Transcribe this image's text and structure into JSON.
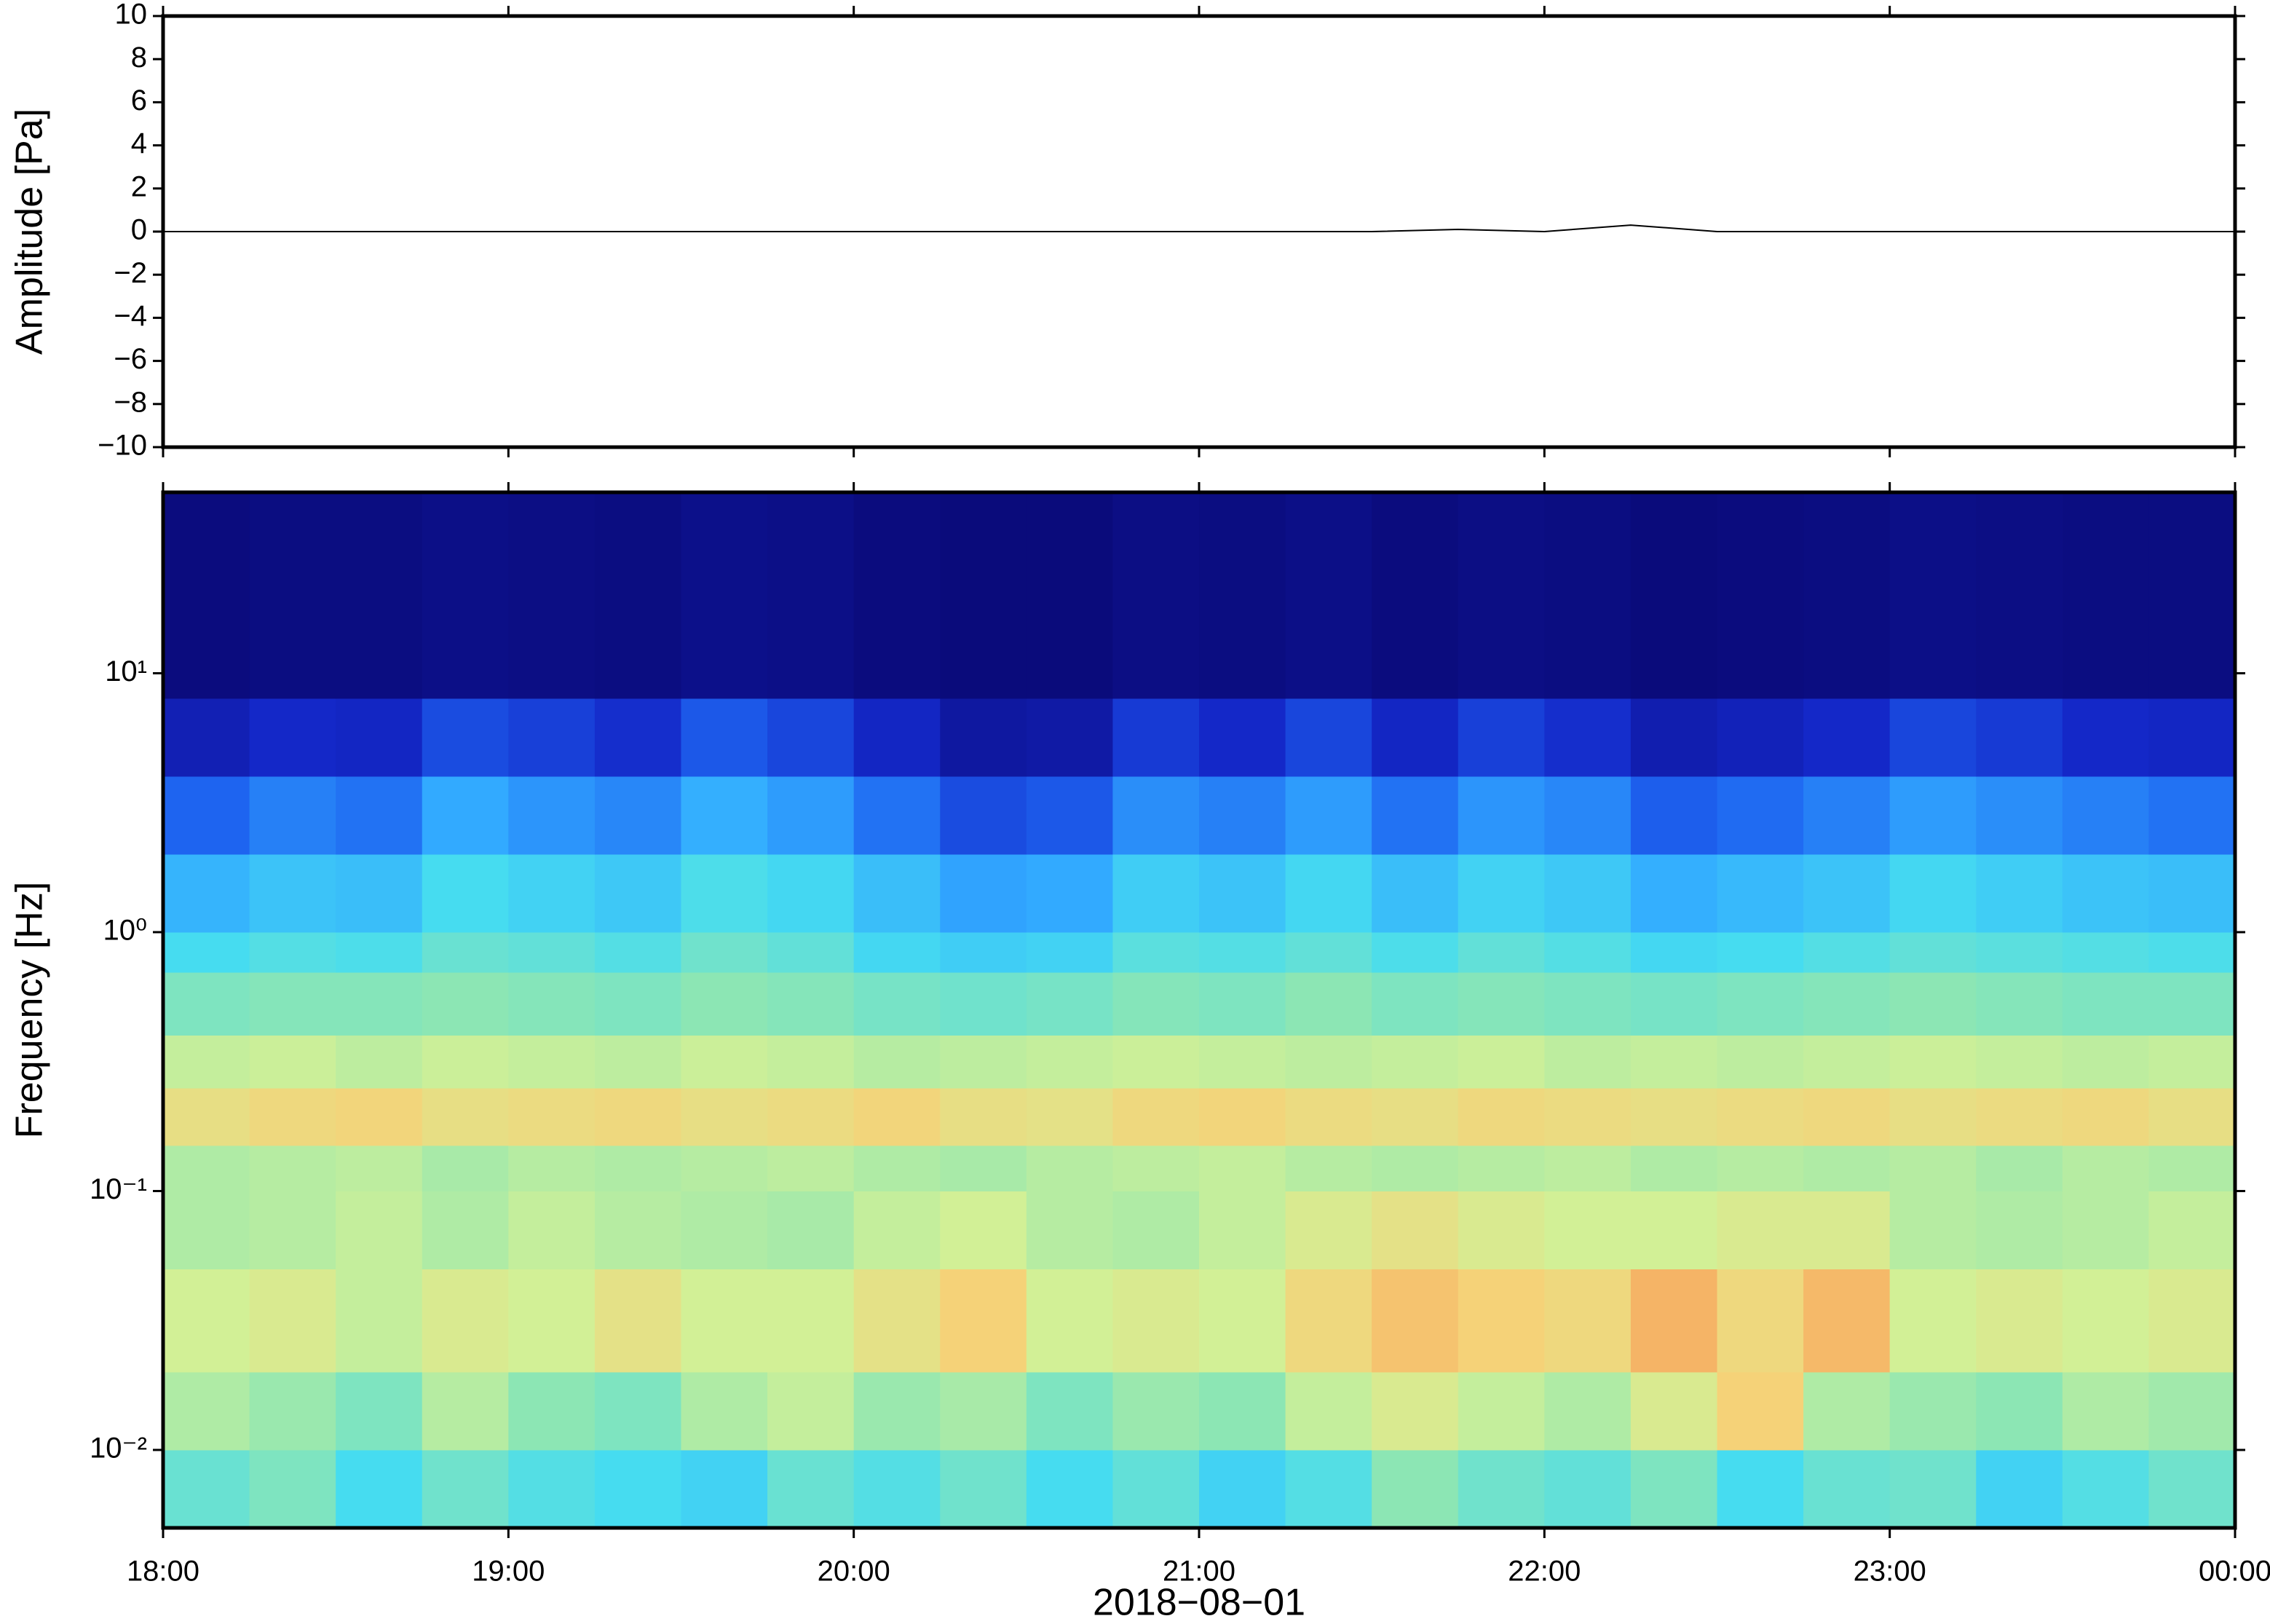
{
  "chart_data": [
    {
      "type": "line",
      "ylabel": "Amplitude [Pa]",
      "xlim": [
        18,
        24
      ],
      "ylim": [
        -10,
        10
      ],
      "yticks": [
        {
          "value": -10,
          "label": "−10"
        },
        {
          "value": -8,
          "label": "−8"
        },
        {
          "value": -6,
          "label": "−6"
        },
        {
          "value": -4,
          "label": "−4"
        },
        {
          "value": -2,
          "label": "−2"
        },
        0,
        2,
        4,
        6,
        8,
        10
      ],
      "color": "#000000",
      "x": [
        18,
        18.25,
        18.5,
        18.75,
        19,
        19.25,
        19.5,
        19.75,
        20,
        20.25,
        20.5,
        20.75,
        21,
        21.25,
        21.5,
        21.75,
        22,
        22.25,
        22.5,
        22.75,
        23,
        23.25,
        23.5,
        23.75,
        24
      ],
      "values": [
        0,
        0,
        0,
        0,
        0,
        0,
        0,
        0,
        0,
        0,
        0,
        0,
        0,
        0,
        0,
        0.1,
        0,
        0.3,
        0,
        0,
        0,
        0,
        0,
        0,
        0
      ]
    },
    {
      "type": "heatmap",
      "ylabel": "Frequency [Hz]",
      "xlabel": "2018−08−01",
      "xlim": [
        18,
        24
      ],
      "ylim": [
        0.005,
        50
      ],
      "log_y": true,
      "xticks": [
        {
          "value": 18,
          "label": "18:00"
        },
        {
          "value": 19,
          "label": "19:00"
        },
        {
          "value": 20,
          "label": "20:00"
        },
        {
          "value": 21,
          "label": "21:00"
        },
        {
          "value": 22,
          "label": "22:00"
        },
        {
          "value": 23,
          "label": "23:00"
        },
        {
          "value": 24,
          "label": "00:00"
        }
      ],
      "yticks": [
        {
          "value": 0.01,
          "label": "10⁻²"
        },
        {
          "value": 0.1,
          "label": "10⁻¹"
        },
        {
          "value": 1,
          "label": "10⁰"
        },
        {
          "value": 10,
          "label": "10¹"
        }
      ],
      "colormap": [
        "#0a0a78",
        "#0e1496",
        "#1428c8",
        "#1e64f0",
        "#32aaff",
        "#46dcf0",
        "#8ce6b4",
        "#d2f096",
        "#f5d278",
        "#f5a05a",
        "#e64628"
      ],
      "zlim": [
        0,
        10
      ],
      "x_bins": [
        18,
        18.25,
        18.5,
        18.75,
        19,
        19.25,
        19.5,
        19.75,
        20,
        20.25,
        20.5,
        20.75,
        21,
        21.25,
        21.5,
        21.75,
        22,
        22.25,
        22.5,
        22.75,
        23,
        23.25,
        23.5,
        23.75,
        24
      ],
      "y_bins": [
        0.005,
        0.01,
        0.02,
        0.05,
        0.1,
        0.15,
        0.25,
        0.4,
        0.7,
        1,
        2,
        4,
        8,
        50
      ],
      "z": [
        [
          5.5,
          5.8,
          5,
          5.6,
          5.2,
          5,
          4.8,
          5.5,
          5.2,
          5.6,
          5,
          5.4,
          4.8,
          5.2,
          6,
          5.6,
          5.4,
          5.8,
          5,
          5.5,
          5.6,
          4.8,
          5.2,
          5.6
        ],
        [
          6.5,
          6.2,
          5.8,
          6.6,
          6,
          5.8,
          6.5,
          6.8,
          6.2,
          6.4,
          5.8,
          6.2,
          6,
          6.8,
          7.2,
          6.8,
          6.5,
          7.2,
          8,
          6.5,
          6.2,
          6,
          6.5,
          6.3
        ],
        [
          7,
          7.2,
          6.8,
          7.2,
          7,
          7.5,
          7,
          7,
          7.5,
          8,
          7,
          7.2,
          7,
          7.8,
          8.3,
          8,
          7.8,
          8.6,
          7.8,
          8.5,
          7,
          7.2,
          7,
          7.2
        ],
        [
          6.5,
          6.6,
          6.8,
          6.5,
          6.8,
          6.6,
          6.5,
          6.4,
          6.8,
          7,
          6.6,
          6.5,
          6.8,
          7.2,
          7.5,
          7.2,
          7,
          7,
          7.2,
          7.2,
          6.6,
          6.5,
          6.6,
          6.8
        ],
        [
          6.5,
          6.6,
          6.7,
          6.4,
          6.6,
          6.5,
          6.6,
          6.7,
          6.5,
          6.4,
          6.6,
          6.7,
          6.8,
          6.6,
          6.5,
          6.6,
          6.7,
          6.5,
          6.6,
          6.5,
          6.6,
          6.4,
          6.6,
          6.5
        ],
        [
          7.6,
          7.8,
          7.9,
          7.6,
          7.7,
          7.8,
          7.6,
          7.7,
          7.9,
          7.6,
          7.5,
          7.8,
          7.9,
          7.7,
          7.6,
          7.8,
          7.7,
          7.6,
          7.7,
          7.8,
          7.6,
          7.7,
          7.8,
          7.6
        ],
        [
          6.8,
          6.9,
          6.7,
          6.9,
          6.8,
          6.7,
          6.9,
          6.8,
          6.6,
          6.7,
          6.8,
          6.9,
          6.8,
          6.7,
          6.8,
          6.9,
          6.7,
          6.8,
          6.7,
          6.8,
          6.9,
          6.8,
          6.7,
          6.8
        ],
        [
          5.8,
          5.9,
          5.9,
          6,
          5.9,
          5.8,
          6,
          5.9,
          5.7,
          5.6,
          5.7,
          5.9,
          5.8,
          6,
          5.8,
          5.9,
          5.8,
          5.7,
          5.8,
          5.9,
          6,
          5.9,
          5.8,
          5.8
        ],
        [
          5,
          5.2,
          5.1,
          5.5,
          5.4,
          5.2,
          5.6,
          5.4,
          4.9,
          4.7,
          4.8,
          5.3,
          5.2,
          5.4,
          5.1,
          5.4,
          5.2,
          4.9,
          5,
          5.2,
          5.4,
          5.3,
          5.2,
          5.1
        ],
        [
          4.2,
          4.5,
          4.4,
          5,
          4.8,
          4.6,
          5.1,
          4.9,
          4.4,
          3.9,
          4,
          4.7,
          4.5,
          4.9,
          4.4,
          4.8,
          4.6,
          4.1,
          4.3,
          4.5,
          4.9,
          4.7,
          4.5,
          4.4
        ],
        [
          3,
          3.4,
          3.2,
          4,
          3.7,
          3.5,
          4.1,
          3.8,
          3.2,
          2.6,
          2.8,
          3.6,
          3.4,
          3.8,
          3.2,
          3.7,
          3.5,
          2.9,
          3.1,
          3.4,
          3.8,
          3.6,
          3.4,
          3.2
        ],
        [
          1.6,
          2,
          1.9,
          2.6,
          2.4,
          2.1,
          2.8,
          2.5,
          1.9,
          1.2,
          1.3,
          2.3,
          2,
          2.5,
          1.9,
          2.4,
          2.1,
          1.5,
          1.7,
          2,
          2.5,
          2.3,
          2,
          1.9
        ],
        [
          0.2,
          0.3,
          0.3,
          0.5,
          0.4,
          0.3,
          0.6,
          0.5,
          0.2,
          0.1,
          0.1,
          0.4,
          0.3,
          0.5,
          0.2,
          0.4,
          0.3,
          0.1,
          0.2,
          0.3,
          0.5,
          0.4,
          0.3,
          0.3
        ]
      ]
    }
  ]
}
